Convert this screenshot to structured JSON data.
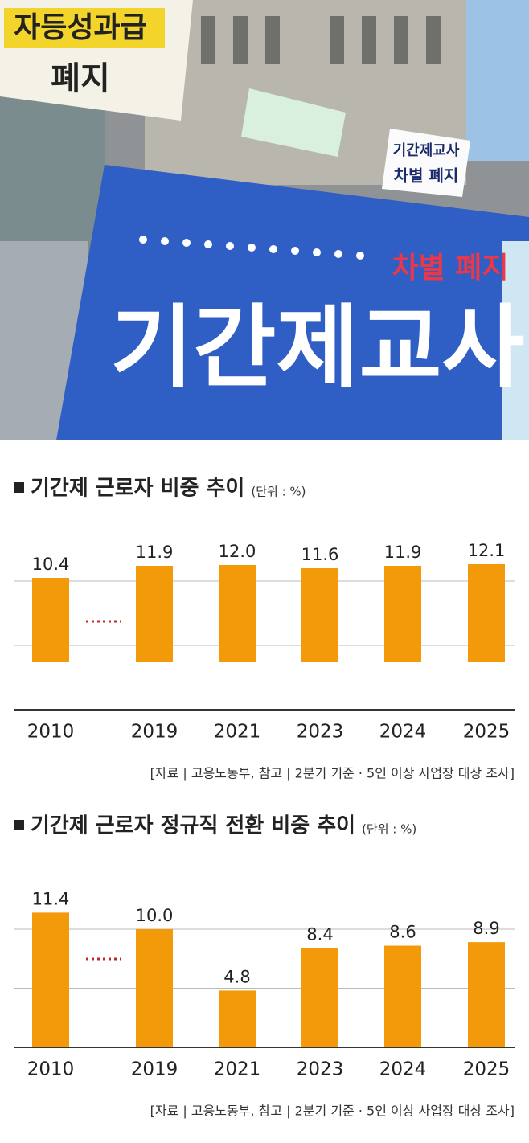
{
  "photo": {
    "banner": "기간제교사",
    "banner_sub": "차별 폐지",
    "signs": [
      "자등성과급",
      "폐지",
      "기간제교사",
      "차별 폐지"
    ]
  },
  "chart_data": [
    {
      "type": "bar",
      "title": "기간제 근로자 비중 추이",
      "unit": "(단위 : %)",
      "categories": [
        "2010",
        "2019",
        "2021",
        "2023",
        "2024",
        "2025"
      ],
      "values": [
        10.4,
        11.9,
        12.0,
        11.6,
        11.9,
        12.1
      ],
      "value_labels": [
        "10.4",
        "11.9",
        "12.0",
        "11.6",
        "11.9",
        "12.1"
      ],
      "color": "#f39a0b",
      "ylim": [
        -6,
        14
      ],
      "yticks": [
        2,
        10
      ],
      "grid": true,
      "note": "[자료 | 고용노동부, 참고 | 2분기 기준 · 5인 이상 사업장 대상 조사]"
    },
    {
      "type": "bar",
      "title": "기간제 근로자 정규직 전환 비중 추이",
      "unit": "(단위 : %)",
      "categories": [
        "2010",
        "2019",
        "2021",
        "2023",
        "2024",
        "2025"
      ],
      "values": [
        11.4,
        10.0,
        4.8,
        8.4,
        8.6,
        8.9
      ],
      "value_labels": [
        "11.4",
        "10.0",
        "4.8",
        "8.4",
        "8.6",
        "8.9"
      ],
      "color": "#f39a0b",
      "ylim": [
        0,
        13.6
      ],
      "yticks": [
        5,
        10
      ],
      "grid": true,
      "note": "[자료 | 고용노동부, 참고 | 2분기 기준 · 5인 이상 사업장 대상 조사]"
    }
  ]
}
